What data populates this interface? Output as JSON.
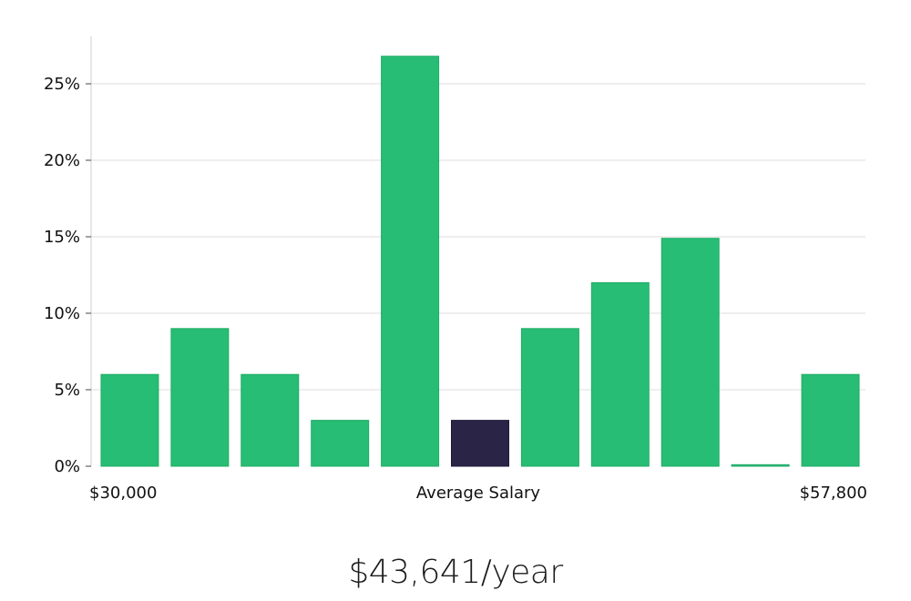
{
  "chart_data": {
    "type": "bar",
    "title": "",
    "xlabel": "Average Salary",
    "ylabel": "",
    "x_range_labels": {
      "min": "$30,000",
      "max": "$57,800"
    },
    "ylim": [
      0,
      28
    ],
    "yticks": [
      0,
      5,
      10,
      15,
      20,
      25
    ],
    "ytick_labels": [
      "0%",
      "5%",
      "10%",
      "15%",
      "20%",
      "25%"
    ],
    "values": [
      6,
      9,
      6,
      3,
      26.8,
      3,
      9,
      12,
      14.9,
      0.1,
      6
    ],
    "highlight_index": 5,
    "colors": {
      "bar": "#27bd74",
      "highlight": "#2a2547",
      "grid": "#dddddd",
      "axis": "#cccccc"
    }
  },
  "salary": {
    "display": "$43,641/year"
  }
}
